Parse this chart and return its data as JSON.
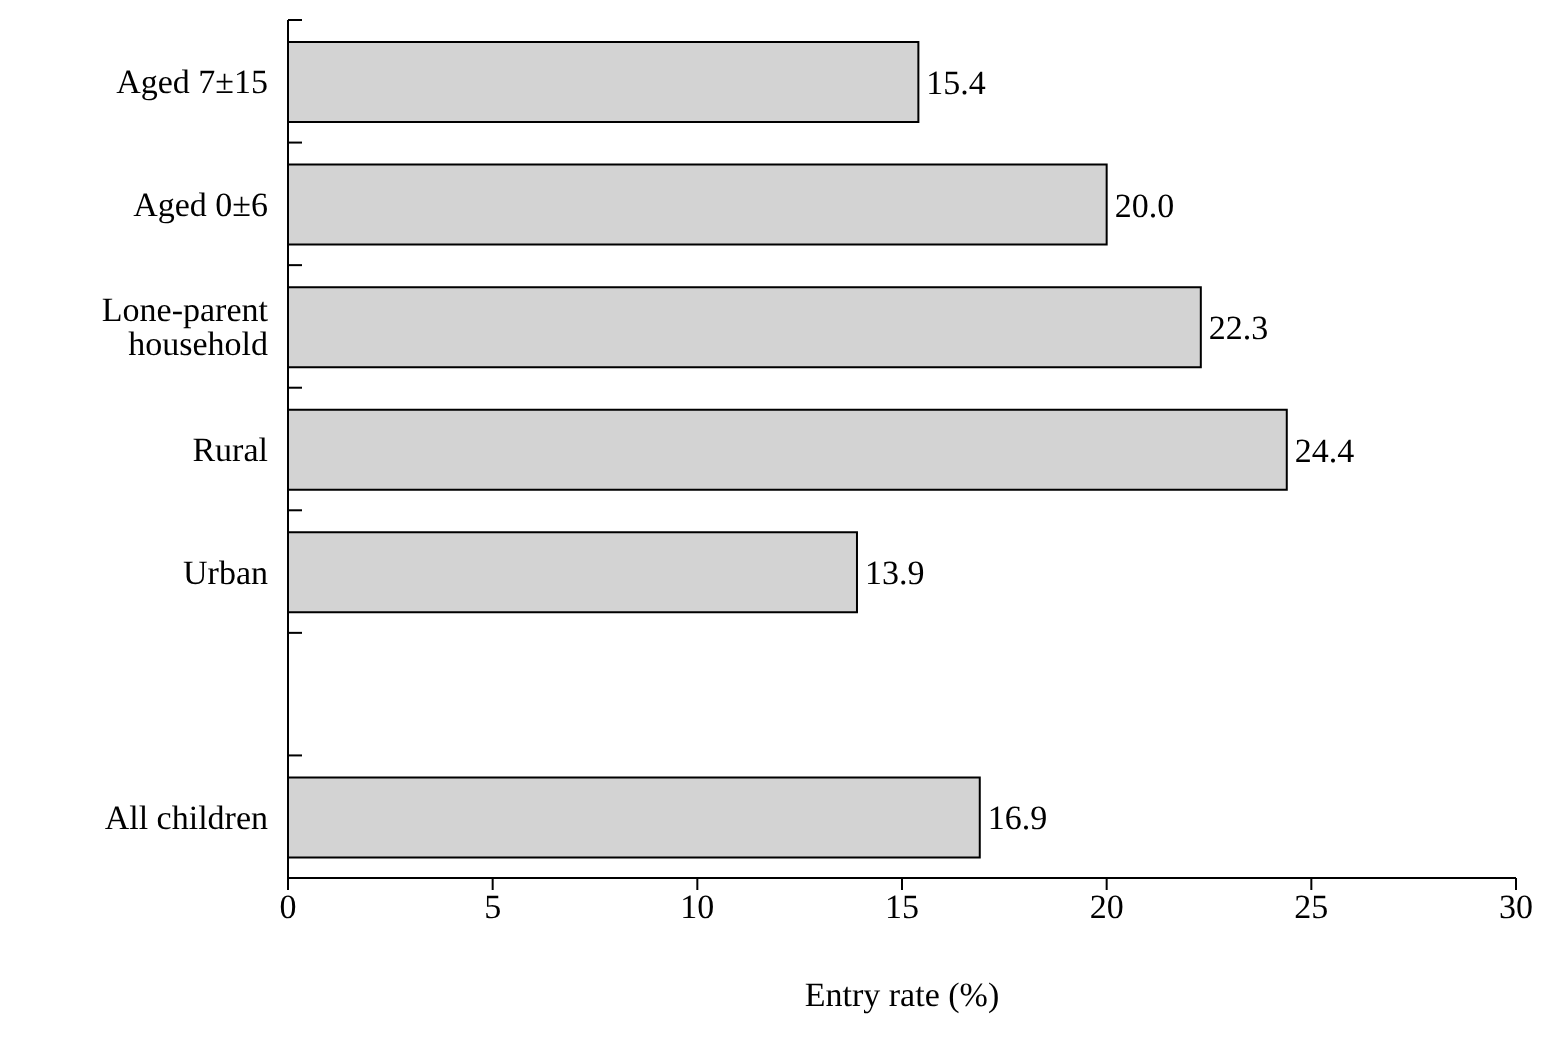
{
  "chart_data": {
    "type": "bar",
    "orientation": "horizontal",
    "categories": [
      "Aged 7±15",
      "Aged 0±6",
      "Lone-parent household",
      "Rural",
      "Urban",
      null,
      "All children"
    ],
    "values": [
      15.4,
      20.0,
      22.3,
      24.4,
      13.9,
      null,
      16.9
    ],
    "value_labels": [
      "15.4",
      "20.0",
      "22.3",
      "24.4",
      "13.9",
      null,
      "16.9"
    ],
    "color": "#d3d3d3",
    "xlabel": "Entry rate (%)",
    "xlim": [
      0,
      30
    ],
    "xticks": [
      0,
      5,
      10,
      15,
      20,
      25,
      30
    ],
    "grid": false,
    "legend": false
  }
}
